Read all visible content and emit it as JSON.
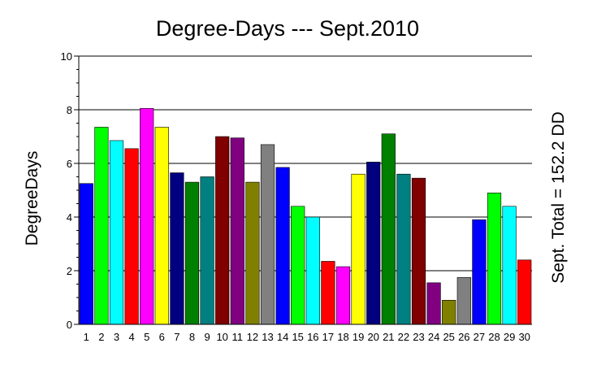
{
  "chart_data": {
    "type": "bar",
    "title": "Degree-Days --- Sept.2010",
    "ylabel": "DegreeDays",
    "xlabel": "",
    "right_label": "Sept. Total = 152.2 DD",
    "ylim": [
      0,
      10
    ],
    "yticks": [
      "0",
      "2",
      "4",
      "6",
      "8",
      "10"
    ],
    "grid": true,
    "categories": [
      "1",
      "2",
      "3",
      "4",
      "5",
      "6",
      "7",
      "8",
      "9",
      "10",
      "11",
      "12",
      "13",
      "14",
      "15",
      "16",
      "17",
      "18",
      "19",
      "20",
      "21",
      "22",
      "23",
      "24",
      "25",
      "26",
      "27",
      "28",
      "29",
      "30"
    ],
    "values": [
      5.25,
      7.35,
      6.85,
      6.55,
      8.05,
      7.35,
      5.65,
      5.3,
      5.5,
      7.0,
      6.95,
      5.3,
      6.7,
      5.85,
      4.4,
      4.0,
      2.35,
      2.15,
      5.6,
      6.05,
      7.1,
      5.6,
      5.45,
      1.55,
      0.9,
      1.75,
      3.9,
      4.9,
      4.4,
      2.4
    ],
    "colors": [
      "#0000ff",
      "#00ff00",
      "#00ffff",
      "#ff0000",
      "#ff00ff",
      "#ffff00",
      "#000080",
      "#008000",
      "#008080",
      "#800000",
      "#800080",
      "#808000",
      "#808080",
      "#0000ff",
      "#00ff00",
      "#00ffff",
      "#ff0000",
      "#ff00ff",
      "#ffff00",
      "#000080",
      "#008000",
      "#008080",
      "#800000",
      "#800080",
      "#808000",
      "#808080",
      "#0000ff",
      "#00ff00",
      "#00ffff",
      "#ff0000"
    ]
  }
}
